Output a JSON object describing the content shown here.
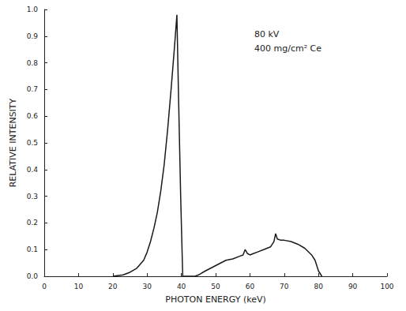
{
  "chart_data": {
    "type": "line",
    "xlabel": "PHOTON ENERGY (keV)",
    "ylabel": "RELATIVE INTENSITY",
    "annotations": [
      "80 kV",
      "400 mg/cm² Ce"
    ],
    "x": [
      20,
      23,
      25,
      27,
      29,
      30,
      31,
      32,
      33,
      34,
      35,
      36,
      37,
      38,
      38.7,
      39.2,
      39.8,
      40.4,
      42,
      44,
      45,
      47,
      50,
      53,
      55,
      57,
      58,
      58.6,
      59.3,
      60,
      61,
      62,
      64,
      66,
      67,
      67.5,
      68,
      69,
      70,
      72,
      74,
      76,
      78,
      79,
      80,
      81
    ],
    "values": [
      0,
      0.005,
      0.015,
      0.03,
      0.06,
      0.09,
      0.13,
      0.18,
      0.24,
      0.32,
      0.42,
      0.55,
      0.7,
      0.86,
      0.98,
      0.66,
      0.3,
      0,
      0,
      0,
      0.005,
      0.02,
      0.04,
      0.06,
      0.065,
      0.075,
      0.08,
      0.1,
      0.085,
      0.08,
      0.085,
      0.09,
      0.1,
      0.11,
      0.13,
      0.16,
      0.14,
      0.135,
      0.135,
      0.13,
      0.12,
      0.105,
      0.08,
      0.06,
      0.02,
      0
    ],
    "color": "#1a1a1a",
    "xlim": [
      0,
      100
    ],
    "xticks": [
      0,
      10,
      20,
      30,
      40,
      50,
      60,
      70,
      80,
      90,
      100
    ],
    "ylim": [
      0,
      1
    ],
    "yticks": [
      {
        "value": 0,
        "label": "0.0"
      },
      0.1,
      0.2,
      0.3,
      0.4,
      0.5,
      0.6,
      0.7,
      0.8,
      0.9,
      {
        "value": 1,
        "label": "1.0"
      }
    ],
    "grid": false
  }
}
